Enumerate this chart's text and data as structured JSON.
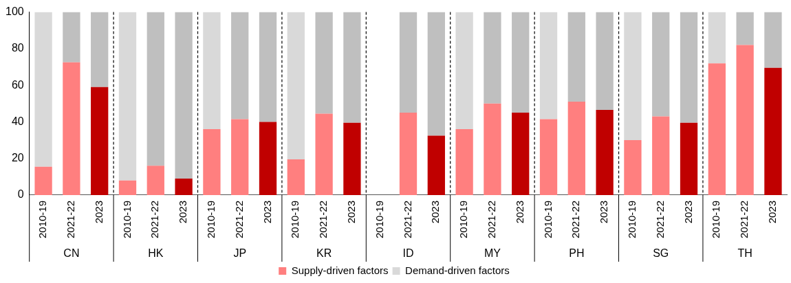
{
  "chart_data": {
    "type": "bar",
    "stacked": true,
    "categories": [
      "2010-19",
      "2021-22",
      "2023",
      "2010-19",
      "2021-22",
      "2023",
      "2010-19",
      "2021-22",
      "2023",
      "2010-19",
      "2021-22",
      "2023",
      "2010-19",
      "2021-22",
      "2023",
      "2010-19",
      "2021-22",
      "2023",
      "2010-19",
      "2021-22",
      "2023",
      "2010-19",
      "2021-22",
      "2023",
      "2010-19",
      "2021-22",
      "2023"
    ],
    "annotations": [
      "CN",
      "HK",
      "JP",
      "KR",
      "ID",
      "MY",
      "PH",
      "SG",
      "TH"
    ],
    "series": [
      {
        "name": "Supply-driven factors",
        "color": "#ff7f7f",
        "colors": [
          "#ff7f7f",
          "#ff7f7f",
          "#c00000",
          "#ff7f7f",
          "#ff7f7f",
          "#c00000",
          "#ff7f7f",
          "#ff7f7f",
          "#c00000",
          "#ff7f7f",
          "#ff7f7f",
          "#c00000",
          "#ff7f7f",
          "#ff7f7f",
          "#c00000",
          "#ff7f7f",
          "#ff7f7f",
          "#c00000",
          "#ff7f7f",
          "#ff7f7f",
          "#c00000",
          "#ff7f7f",
          "#ff7f7f",
          "#c00000",
          "#ff7f7f",
          "#ff7f7f",
          "#c00000"
        ],
        "values": [
          15.5,
          72.5,
          59,
          8,
          16,
          9,
          36,
          41.5,
          40,
          19.5,
          44.5,
          39.5,
          null,
          45,
          32.5,
          36,
          50,
          45,
          41.5,
          51,
          46.5,
          30,
          43,
          39.5,
          72,
          82,
          69.5
        ]
      },
      {
        "name": "Demand-driven factors",
        "color": "#d9d9d9",
        "colors": [
          "#d9d9d9",
          "#bfbfbf",
          "#bfbfbf",
          "#d9d9d9",
          "#bfbfbf",
          "#bfbfbf",
          "#d9d9d9",
          "#bfbfbf",
          "#bfbfbf",
          "#d9d9d9",
          "#bfbfbf",
          "#bfbfbf",
          "#d9d9d9",
          "#bfbfbf",
          "#bfbfbf",
          "#d9d9d9",
          "#bfbfbf",
          "#bfbfbf",
          "#d9d9d9",
          "#bfbfbf",
          "#bfbfbf",
          "#d9d9d9",
          "#bfbfbf",
          "#bfbfbf",
          "#d9d9d9",
          "#bfbfbf",
          "#bfbfbf"
        ],
        "values": [
          84.5,
          27.5,
          41,
          92,
          84,
          91,
          64,
          58.5,
          60,
          80.5,
          55.5,
          60.5,
          null,
          55,
          67.5,
          64,
          50,
          55,
          58.5,
          49,
          53.5,
          70,
          57,
          60.5,
          28,
          18,
          30.5
        ]
      }
    ],
    "ylim": [
      0,
      100
    ],
    "yticks": [
      0,
      20,
      40,
      60,
      80,
      100
    ],
    "grid": false,
    "legend": "bottom"
  }
}
